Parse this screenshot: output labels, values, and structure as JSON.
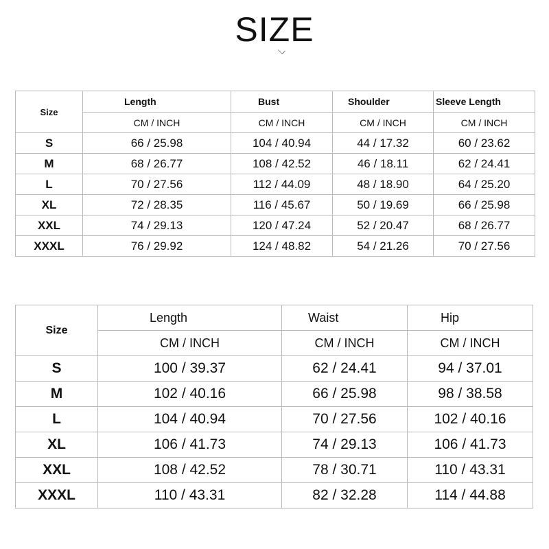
{
  "title": "SIZE",
  "top_table": {
    "size_header": "Size",
    "columns": [
      "Length",
      "Bust",
      "Shoulder",
      "Sleeve Length"
    ],
    "unit_label": "CM  /  INCH",
    "rows": [
      {
        "size": "S",
        "values": [
          "66 / 25.98",
          "104 / 40.94",
          "44 / 17.32",
          "60 / 23.62"
        ]
      },
      {
        "size": "M",
        "values": [
          "68 / 26.77",
          "108 / 42.52",
          "46 / 18.11",
          "62 / 24.41"
        ]
      },
      {
        "size": "L",
        "values": [
          "70 / 27.56",
          "112 / 44.09",
          "48 / 18.90",
          "64 / 25.20"
        ]
      },
      {
        "size": "XL",
        "values": [
          "72 / 28.35",
          "116 / 45.67",
          "50 / 19.69",
          "66 / 25.98"
        ]
      },
      {
        "size": "XXL",
        "values": [
          "74 / 29.13",
          "120 / 47.24",
          "52 / 20.47",
          "68 / 26.77"
        ]
      },
      {
        "size": "XXXL",
        "values": [
          "76 / 29.92",
          "124 / 48.82",
          "54 / 21.26",
          "70 / 27.56"
        ]
      }
    ]
  },
  "bottom_table": {
    "size_header": "Size",
    "columns": [
      "Length",
      "Waist",
      "Hip"
    ],
    "unit_label": "CM  /  INCH",
    "rows": [
      {
        "size": "S",
        "values": [
          "100 / 39.37",
          "62 / 24.41",
          "94 / 37.01"
        ]
      },
      {
        "size": "M",
        "values": [
          "102 / 40.16",
          "66 / 25.98",
          "98 / 38.58"
        ]
      },
      {
        "size": "L",
        "values": [
          "104 / 40.94",
          "70 / 27.56",
          "102 / 40.16"
        ]
      },
      {
        "size": "XL",
        "values": [
          "106 / 41.73",
          "74 / 29.13",
          "106 / 41.73"
        ]
      },
      {
        "size": "XXL",
        "values": [
          "108 / 42.52",
          "78 / 30.71",
          "110 / 43.31"
        ]
      },
      {
        "size": "XXXL",
        "values": [
          "110 / 43.31",
          "82 / 32.28",
          "114 / 44.88"
        ]
      }
    ]
  }
}
